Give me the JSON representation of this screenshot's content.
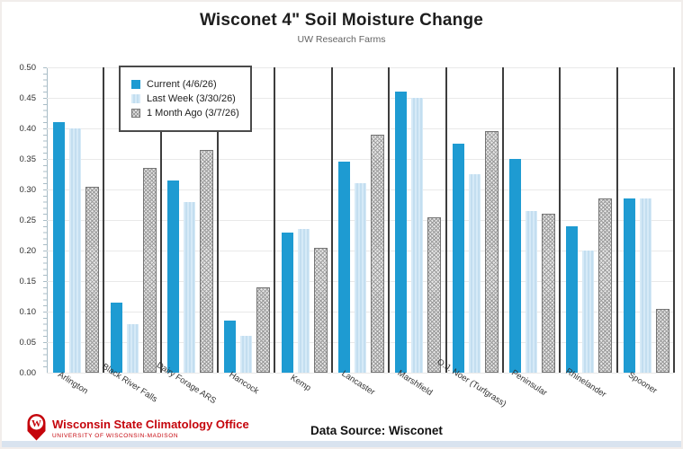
{
  "title": "Wisconet 4\" Soil Moisture Change",
  "subtitle": "UW Research Farms",
  "footer": {
    "org_name": "Wisconsin State Climatology Office",
    "org_sub": "UNIVERSITY OF WISCONSIN-MADISON",
    "data_source": "Data Source: Wisconet"
  },
  "colors": {
    "current": "#1e9bd2",
    "last_week": "#c9e2f3",
    "month_ago_fill": "#e8e8e8",
    "month_ago_hatch": "#9b9b9b",
    "month_ago_border": "#747474",
    "separator": "#3d3d3d",
    "gridline": "#e9e9e9",
    "axis": "#a9bdc7",
    "uw_red": "#c5050c",
    "bottom_strip": "#d9e3ef"
  },
  "chart_data": {
    "type": "bar",
    "title": "Wisconet 4\" Soil Moisture Change",
    "subtitle": "UW Research Farms",
    "categories": [
      "Arlington",
      "Black River Falls",
      "Dairy Forage ARS",
      "Hancock",
      "Kemp",
      "Lancaster",
      "Marshfield",
      "O.J. Noer (Turfgrass)",
      "Peninsular",
      "Rhinelander",
      "Spooner"
    ],
    "series": [
      {
        "name": "Current (4/6/26)",
        "values": [
          0.41,
          0.115,
          0.315,
          0.085,
          0.23,
          0.345,
          0.46,
          0.375,
          0.35,
          0.24,
          0.285
        ]
      },
      {
        "name": "Last Week (3/30/26)",
        "values": [
          0.4,
          0.08,
          0.28,
          0.06,
          0.235,
          0.31,
          0.45,
          0.325,
          0.265,
          0.2,
          0.285
        ]
      },
      {
        "name": "1 Month Ago (3/7/26)",
        "values": [
          0.305,
          0.335,
          0.365,
          0.14,
          0.205,
          0.39,
          0.255,
          0.395,
          0.26,
          0.285,
          0.105
        ]
      }
    ],
    "ylim": [
      0,
      0.5
    ],
    "ytick_step": 0.05,
    "ytick_format": "2dp",
    "grid": true,
    "legend_position": "top-left",
    "group_separators": true
  }
}
